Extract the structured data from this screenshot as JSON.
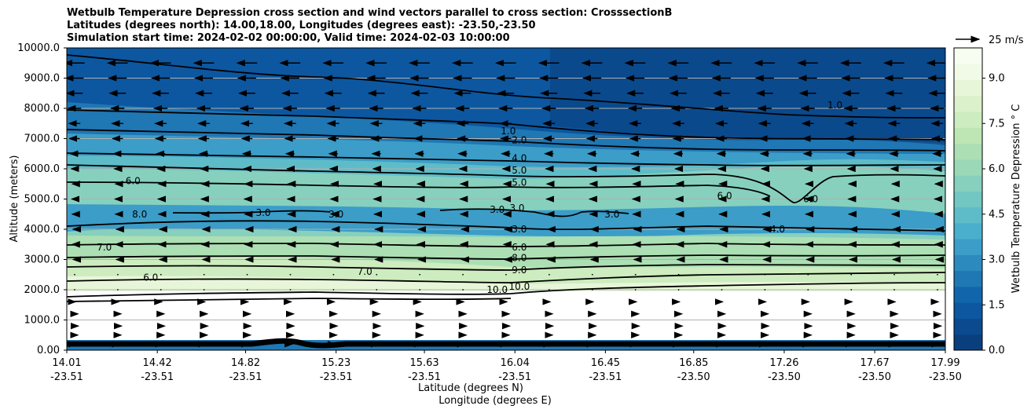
{
  "chart_data": {
    "type": "contour",
    "title_lines": [
      "Wetbulb Temperature Depression cross section and wind vectors parallel to cross section: CrosssectionB",
      "Latitudes (degrees north): 14.00,18.00, Longitudes (degrees east): -23.50,-23.50",
      "Simulation start time: 2024-02-02 00:00:00, Valid time: 2024-02-03 10:00:00"
    ],
    "ylabel": "Altitude (meters)",
    "xlabel_lat": "Latitude (degrees N)",
    "xlabel_lon": "Longitude (degrees E)",
    "ylim": [
      0,
      10000
    ],
    "y_ticks": [
      0,
      1000,
      2000,
      3000,
      4000,
      5000,
      6000,
      7000,
      8000,
      9000,
      10000
    ],
    "y_tick_labels": [
      "0.00",
      "1000.0",
      "2000.0",
      "3000.0",
      "4000.0",
      "5000.0",
      "6000.0",
      "7000.0",
      "8000.0",
      "9000.0",
      "10000.0"
    ],
    "xlim": [
      14.01,
      17.99
    ],
    "x_ticks": [
      {
        "lat": "14.01",
        "lon": "-23.51"
      },
      {
        "lat": "14.42",
        "lon": "-23.51"
      },
      {
        "lat": "14.82",
        "lon": "-23.51"
      },
      {
        "lat": "15.23",
        "lon": "-23.51"
      },
      {
        "lat": "15.63",
        "lon": "-23.51"
      },
      {
        "lat": "16.04",
        "lon": "-23.51"
      },
      {
        "lat": "16.45",
        "lon": "-23.51"
      },
      {
        "lat": "16.85",
        "lon": "-23.50"
      },
      {
        "lat": "17.26",
        "lon": "-23.50"
      },
      {
        "lat": "17.67",
        "lon": "-23.50"
      },
      {
        "lat": "17.99",
        "lon": "-23.50"
      }
    ],
    "colorbar": {
      "label": "Wetbulb Temperature Depression $^\\circ$C",
      "label_display": "Wetbulb Temperature Depression ° C",
      "range": [
        0,
        10
      ],
      "ticks": [
        "0.0",
        "1.5",
        "3.0",
        "4.5",
        "6.0",
        "7.5",
        "9.0"
      ],
      "tick_values": [
        0,
        1.5,
        3,
        4.5,
        6,
        7.5,
        9
      ],
      "colors": [
        "#0a3f7e",
        "#0b4a8f",
        "#0c57a0",
        "#1166ab",
        "#1f77b4",
        "#2c8abe",
        "#3b9dc8",
        "#4aaecd",
        "#5ebcc8",
        "#72c7c2",
        "#87d0bd",
        "#9ad8b7",
        "#acdfb3",
        "#bde6b4",
        "#cdecbf",
        "#dbf1cb",
        "#e7f6d8",
        "#f0fae6",
        "#f7fdf1"
      ]
    },
    "wind_reference": {
      "label": "25 m/s",
      "speed": 25
    },
    "wind_rows": [
      {
        "alt": 200,
        "u": 4
      },
      {
        "alt": 500,
        "u": 7
      },
      {
        "alt": 800,
        "u": 8
      },
      {
        "alt": 1200,
        "u": 7
      },
      {
        "alt": 1600,
        "u": 2
      },
      {
        "alt": 2000,
        "u": 1
      },
      {
        "alt": 2500,
        "u": -1
      },
      {
        "alt": 3000,
        "u": -3
      },
      {
        "alt": 3500,
        "u": -5
      },
      {
        "alt": 4000,
        "u": -3
      },
      {
        "alt": 4500,
        "u": -5
      },
      {
        "alt": 5000,
        "u": -6
      },
      {
        "alt": 5500,
        "u": -5
      },
      {
        "alt": 6000,
        "u": -7
      },
      {
        "alt": 6500,
        "u": -9
      },
      {
        "alt": 7000,
        "u": -11
      },
      {
        "alt": 7500,
        "u": -12
      },
      {
        "alt": 8000,
        "u": -14
      },
      {
        "alt": 8500,
        "u": -17
      },
      {
        "alt": 9000,
        "u": -19
      },
      {
        "alt": 9500,
        "u": -21
      }
    ],
    "contour_labels": [
      {
        "text": "1.0",
        "lat": 16.01,
        "alt": 7250
      },
      {
        "text": "2.0",
        "lat": 16.06,
        "alt": 6950
      },
      {
        "text": "4.0",
        "lat": 16.06,
        "alt": 6350
      },
      {
        "text": "5.0",
        "lat": 16.06,
        "alt": 5950
      },
      {
        "text": "5.0",
        "lat": 16.06,
        "alt": 5550
      },
      {
        "text": "3.0",
        "lat": 15.96,
        "alt": 4650
      },
      {
        "text": "3.0",
        "lat": 16.05,
        "alt": 4700
      },
      {
        "text": "3.0",
        "lat": 16.06,
        "alt": 4000
      },
      {
        "text": "6.0",
        "lat": 16.06,
        "alt": 3400
      },
      {
        "text": "8.0",
        "lat": 16.06,
        "alt": 3050
      },
      {
        "text": "9.0",
        "lat": 16.06,
        "alt": 2650
      },
      {
        "text": "10.0",
        "lat": 15.96,
        "alt": 2000
      },
      {
        "text": "10.0",
        "lat": 16.06,
        "alt": 2100
      },
      {
        "text": "6.0",
        "lat": 14.31,
        "alt": 5600
      },
      {
        "text": "8.0",
        "lat": 14.34,
        "alt": 4500
      },
      {
        "text": "3.0",
        "lat": 14.9,
        "alt": 4550
      },
      {
        "text": "3.0",
        "lat": 15.23,
        "alt": 4500
      },
      {
        "text": "7.0",
        "lat": 14.18,
        "alt": 3400
      },
      {
        "text": "6.0",
        "lat": 14.39,
        "alt": 2400
      },
      {
        "text": "7.0",
        "lat": 15.36,
        "alt": 2600
      },
      {
        "text": "3.0",
        "lat": 16.48,
        "alt": 4500
      },
      {
        "text": "6.0",
        "lat": 16.99,
        "alt": 5100
      },
      {
        "text": "6.0",
        "lat": 17.38,
        "alt": 5000
      },
      {
        "text": "4.0",
        "lat": 17.23,
        "alt": 4000
      },
      {
        "text": "1.0",
        "lat": 17.49,
        "alt": 8100
      }
    ]
  }
}
